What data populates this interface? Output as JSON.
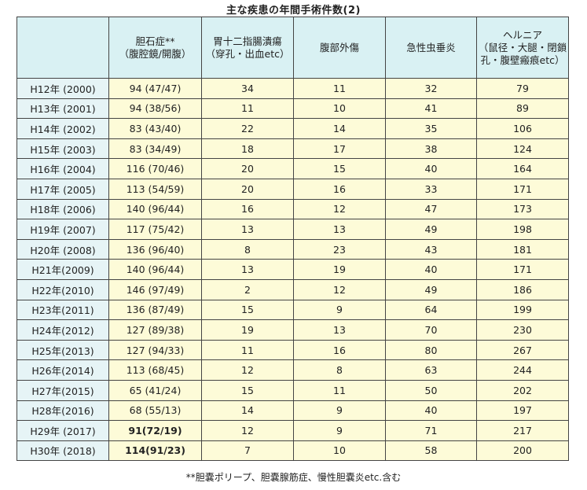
{
  "title": "主な疾患の年間手術件数(2)",
  "headers": [
    "",
    "胆石症**\n（腹腔鏡/開腹）",
    "胃十二指腸潰瘍\n（穿孔・出血etc）",
    "腹部外傷",
    "急性虫垂炎",
    "ヘルニア\n（鼠径・大腿・閉鎖孔・腹壁瘢痕etc）"
  ],
  "rows": [
    {
      "year": "H12年 (2000)",
      "cholelithiasis": "94 (47/47)",
      "ulcer": "34",
      "trauma": "11",
      "appendicitis": "32",
      "hernia": "79"
    },
    {
      "year": "H13年 (2001)",
      "cholelithiasis": "94 (38/56)",
      "ulcer": "11",
      "trauma": "10",
      "appendicitis": "41",
      "hernia": "89"
    },
    {
      "year": "H14年 (2002)",
      "cholelithiasis": "83 (43/40)",
      "ulcer": "22",
      "trauma": "14",
      "appendicitis": "35",
      "hernia": "106"
    },
    {
      "year": "H15年 (2003)",
      "cholelithiasis": "83 (34/49)",
      "ulcer": "18",
      "trauma": "17",
      "appendicitis": "38",
      "hernia": "124"
    },
    {
      "year": "H16年 (2004)",
      "cholelithiasis": "116 (70/46)",
      "ulcer": "20",
      "trauma": "15",
      "appendicitis": "40",
      "hernia": "164"
    },
    {
      "year": "H17年 (2005)",
      "cholelithiasis": "113 (54/59)",
      "ulcer": "20",
      "trauma": "16",
      "appendicitis": "33",
      "hernia": "171"
    },
    {
      "year": "H18年 (2006)",
      "cholelithiasis": "140 (96/44)",
      "ulcer": "16",
      "trauma": "12",
      "appendicitis": "47",
      "hernia": "173"
    },
    {
      "year": "H19年 (2007)",
      "cholelithiasis": "117 (75/42)",
      "ulcer": "13",
      "trauma": "13",
      "appendicitis": "49",
      "hernia": "198"
    },
    {
      "year": "H20年 (2008)",
      "cholelithiasis": "136 (96/40)",
      "ulcer": "8",
      "trauma": "23",
      "appendicitis": "43",
      "hernia": "181"
    },
    {
      "year": "H21年(2009)",
      "cholelithiasis": "140 (96/44)",
      "ulcer": "13",
      "trauma": "19",
      "appendicitis": "40",
      "hernia": "171"
    },
    {
      "year": "H22年(2010)",
      "cholelithiasis": "146 (97/49)",
      "ulcer": "2",
      "trauma": "12",
      "appendicitis": "49",
      "hernia": "186"
    },
    {
      "year": "H23年(2011)",
      "cholelithiasis": "136 (87/49)",
      "ulcer": "15",
      "trauma": "9",
      "appendicitis": "64",
      "hernia": "199"
    },
    {
      "year": "H24年(2012)",
      "cholelithiasis": "127 (89/38)",
      "ulcer": "19",
      "trauma": "13",
      "appendicitis": "70",
      "hernia": "230"
    },
    {
      "year": "H25年(2013)",
      "cholelithiasis": "127 (94/33)",
      "ulcer": "11",
      "trauma": "16",
      "appendicitis": "80",
      "hernia": "267"
    },
    {
      "year": "H26年(2014)",
      "cholelithiasis": "113 (68/45)",
      "ulcer": "12",
      "trauma": "8",
      "appendicitis": "63",
      "hernia": "244"
    },
    {
      "year": "H27年(2015)",
      "cholelithiasis": "65 (41/24)",
      "ulcer": "15",
      "trauma": "11",
      "appendicitis": "50",
      "hernia": "202"
    },
    {
      "year": "H28年(2016)",
      "cholelithiasis": "68 (55/13)",
      "ulcer": "14",
      "trauma": "9",
      "appendicitis": "40",
      "hernia": "197"
    },
    {
      "year": "H29年 (2017)",
      "cholelithiasis": "91(72/19)",
      "ulcer": "12",
      "trauma": "9",
      "appendicitis": "71",
      "hernia": "217"
    },
    {
      "year": "H30年 (2018)",
      "cholelithiasis": "114(91/23)",
      "ulcer": "7",
      "trauma": "10",
      "appendicitis": "58",
      "hernia": "200"
    }
  ],
  "footnote": "**胆嚢ポリープ、胆嚢腺筋症、慢性胆嚢炎etc.含む",
  "colors": {
    "header_bg": "#d9f1f3",
    "year_bg": "#e6f4f6",
    "cell_bg": "#fdfbd8",
    "border": "#444444"
  }
}
